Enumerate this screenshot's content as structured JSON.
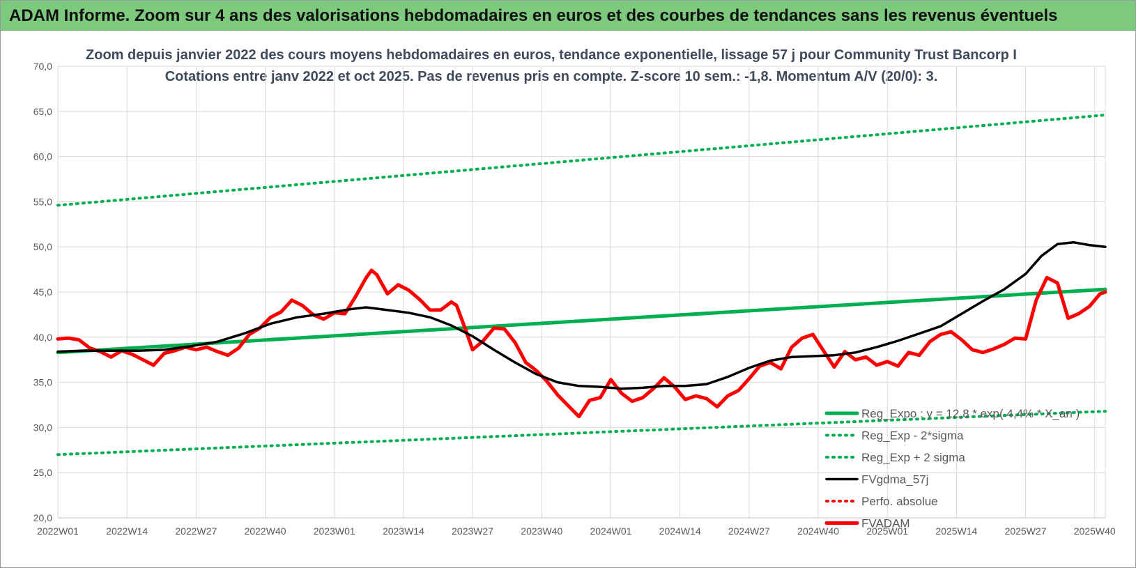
{
  "banner": {
    "title": "ADAM Informe. Zoom sur 4 ans des valorisations hebdomadaires en euros et des courbes de tendances sans les revenus éventuels"
  },
  "chart_data": {
    "type": "line",
    "title": "Zoom depuis janvier 2022 des cours moyens hebdomadaires en euros, tendance exponentielle, lissage 57 j pour Community Trust Bancorp I",
    "subtitle": "Cotations entre janv 2022 et oct 2025. Pas de revenus pris en compte. Z-score 10 sem.: -1,8. Momentum A/V (20/0): 3.",
    "xlabel": "",
    "ylabel": "",
    "ylim": [
      20,
      70
    ],
    "y_ticks": [
      "70,0",
      "65,0",
      "60,0",
      "55,0",
      "50,0",
      "45,0",
      "40,0",
      "35,0",
      "30,0",
      "25,0",
      "20,0"
    ],
    "x_ticks": [
      "2022W01",
      "2022W14",
      "2022W27",
      "2022W40",
      "2023W01",
      "2023W14",
      "2023W27",
      "2023W40",
      "2024W01",
      "2024W14",
      "2024W27",
      "2024W40",
      "2025W01",
      "2025W14",
      "2025W27",
      "2025W40"
    ],
    "x_count": 198,
    "grid": true,
    "legend_position": "bottom-right",
    "series": [
      {
        "name": "Reg_Expo : y = 12,8 * exp( 4,4% * X_an )",
        "style": "solid-thick",
        "color": "#00b050",
        "points": [
          [
            0,
            38.3
          ],
          [
            197,
            45.3
          ]
        ]
      },
      {
        "name": "Reg_Exp - 2*sigma",
        "style": "dotted",
        "color": "#00b050",
        "points": [
          [
            0,
            27.0
          ],
          [
            197,
            31.8
          ]
        ]
      },
      {
        "name": "Reg_Exp + 2 sigma",
        "style": "dotted",
        "color": "#00b050",
        "points": [
          [
            0,
            54.6
          ],
          [
            197,
            64.6
          ]
        ]
      },
      {
        "name": "FVgdma_57j",
        "style": "solid",
        "color": "#000000",
        "points": [
          [
            0,
            38.4
          ],
          [
            5,
            38.5
          ],
          [
            10,
            38.5
          ],
          [
            15,
            38.5
          ],
          [
            20,
            38.6
          ],
          [
            25,
            39.0
          ],
          [
            30,
            39.5
          ],
          [
            35,
            40.4
          ],
          [
            40,
            41.5
          ],
          [
            45,
            42.2
          ],
          [
            50,
            42.6
          ],
          [
            55,
            43.1
          ],
          [
            58,
            43.3
          ],
          [
            62,
            43.0
          ],
          [
            66,
            42.7
          ],
          [
            70,
            42.2
          ],
          [
            74,
            41.3
          ],
          [
            78,
            40.1
          ],
          [
            82,
            38.6
          ],
          [
            86,
            37.2
          ],
          [
            90,
            35.9
          ],
          [
            94,
            35.0
          ],
          [
            98,
            34.6
          ],
          [
            102,
            34.5
          ],
          [
            106,
            34.3
          ],
          [
            110,
            34.4
          ],
          [
            114,
            34.6
          ],
          [
            118,
            34.6
          ],
          [
            122,
            34.8
          ],
          [
            126,
            35.6
          ],
          [
            130,
            36.6
          ],
          [
            134,
            37.4
          ],
          [
            138,
            37.8
          ],
          [
            142,
            37.9
          ],
          [
            146,
            38.0
          ],
          [
            150,
            38.3
          ],
          [
            154,
            38.9
          ],
          [
            158,
            39.6
          ],
          [
            162,
            40.4
          ],
          [
            166,
            41.2
          ],
          [
            170,
            42.6
          ],
          [
            174,
            44.0
          ],
          [
            178,
            45.3
          ],
          [
            182,
            47.0
          ],
          [
            185,
            49.0
          ],
          [
            188,
            50.3
          ],
          [
            191,
            50.5
          ],
          [
            194,
            50.2
          ],
          [
            197,
            50.0
          ]
        ]
      },
      {
        "name": "Perfo. absolue",
        "style": "dotted",
        "color": "#ff0000",
        "points": []
      },
      {
        "name": "FVADAM",
        "style": "solid-thick",
        "color": "#ff0000",
        "points": [
          [
            0,
            39.8
          ],
          [
            2,
            39.9
          ],
          [
            4,
            39.7
          ],
          [
            6,
            38.8
          ],
          [
            8,
            38.4
          ],
          [
            10,
            37.8
          ],
          [
            12,
            38.5
          ],
          [
            14,
            38.1
          ],
          [
            16,
            37.5
          ],
          [
            18,
            36.9
          ],
          [
            20,
            38.2
          ],
          [
            22,
            38.5
          ],
          [
            24,
            38.9
          ],
          [
            26,
            38.6
          ],
          [
            28,
            38.9
          ],
          [
            30,
            38.4
          ],
          [
            32,
            38.0
          ],
          [
            34,
            38.8
          ],
          [
            36,
            40.3
          ],
          [
            38,
            41.0
          ],
          [
            40,
            42.2
          ],
          [
            42,
            42.8
          ],
          [
            44,
            44.1
          ],
          [
            46,
            43.5
          ],
          [
            48,
            42.5
          ],
          [
            50,
            42.0
          ],
          [
            52,
            42.7
          ],
          [
            54,
            42.6
          ],
          [
            56,
            44.5
          ],
          [
            58,
            46.6
          ],
          [
            59,
            47.4
          ],
          [
            60,
            46.9
          ],
          [
            62,
            44.8
          ],
          [
            64,
            45.8
          ],
          [
            66,
            45.2
          ],
          [
            68,
            44.2
          ],
          [
            70,
            43.0
          ],
          [
            72,
            43.0
          ],
          [
            74,
            43.9
          ],
          [
            75,
            43.5
          ],
          [
            77,
            40.3
          ],
          [
            78,
            38.6
          ],
          [
            80,
            39.6
          ],
          [
            82,
            41.0
          ],
          [
            84,
            40.9
          ],
          [
            86,
            39.4
          ],
          [
            88,
            37.2
          ],
          [
            90,
            36.3
          ],
          [
            92,
            35.1
          ],
          [
            94,
            33.6
          ],
          [
            96,
            32.4
          ],
          [
            98,
            31.2
          ],
          [
            100,
            33.0
          ],
          [
            102,
            33.3
          ],
          [
            104,
            35.3
          ],
          [
            106,
            33.8
          ],
          [
            108,
            32.9
          ],
          [
            110,
            33.3
          ],
          [
            112,
            34.3
          ],
          [
            114,
            35.5
          ],
          [
            116,
            34.5
          ],
          [
            118,
            33.1
          ],
          [
            120,
            33.5
          ],
          [
            122,
            33.2
          ],
          [
            124,
            32.3
          ],
          [
            126,
            33.5
          ],
          [
            128,
            34.1
          ],
          [
            130,
            35.4
          ],
          [
            132,
            36.8
          ],
          [
            134,
            37.2
          ],
          [
            136,
            36.5
          ],
          [
            138,
            38.9
          ],
          [
            140,
            39.9
          ],
          [
            142,
            40.3
          ],
          [
            144,
            38.5
          ],
          [
            146,
            36.7
          ],
          [
            148,
            38.4
          ],
          [
            150,
            37.5
          ],
          [
            152,
            37.8
          ],
          [
            154,
            36.9
          ],
          [
            156,
            37.3
          ],
          [
            158,
            36.8
          ],
          [
            160,
            38.3
          ],
          [
            162,
            38.0
          ],
          [
            164,
            39.5
          ],
          [
            166,
            40.3
          ],
          [
            168,
            40.6
          ],
          [
            170,
            39.7
          ],
          [
            172,
            38.6
          ],
          [
            174,
            38.3
          ],
          [
            176,
            38.7
          ],
          [
            178,
            39.2
          ],
          [
            180,
            39.9
          ],
          [
            182,
            39.8
          ],
          [
            184,
            44.1
          ],
          [
            186,
            46.6
          ],
          [
            188,
            46.0
          ],
          [
            190,
            42.1
          ],
          [
            192,
            42.6
          ],
          [
            194,
            43.4
          ],
          [
            196,
            44.8
          ],
          [
            197,
            45.0
          ]
        ]
      }
    ]
  }
}
